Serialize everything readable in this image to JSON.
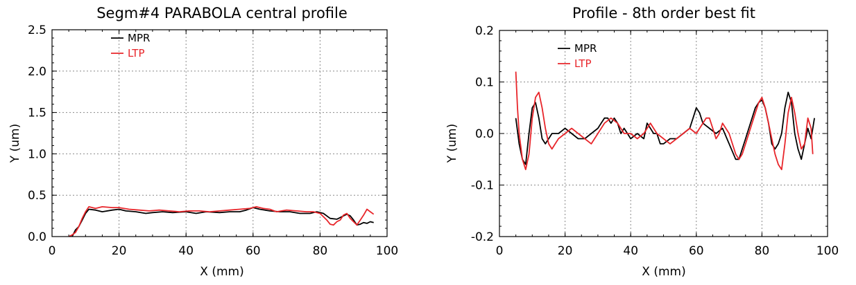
{
  "chart_data": [
    {
      "type": "line",
      "title": "Segm#4 PARABOLA central profile",
      "xlabel": "X (mm)",
      "ylabel": "Y (um)",
      "xlim": [
        0,
        100
      ],
      "ylim": [
        0,
        2.5
      ],
      "xticks": [
        "0",
        "20",
        "40",
        "60",
        "80",
        "100"
      ],
      "yticks": [
        "0.0",
        "0.5",
        "1.0",
        "1.5",
        "2.0",
        "2.5"
      ],
      "grid": true,
      "legend": "top-left",
      "series": [
        {
          "name": "MPR",
          "color": "#000000",
          "points": [
            [
              6,
              0.0
            ],
            [
              7,
              0.08
            ],
            [
              8,
              0.12
            ],
            [
              9,
              0.2
            ],
            [
              10,
              0.28
            ],
            [
              11,
              0.33
            ],
            [
              13,
              0.32
            ],
            [
              15,
              0.3
            ],
            [
              18,
              0.32
            ],
            [
              20,
              0.33
            ],
            [
              22,
              0.31
            ],
            [
              25,
              0.3
            ],
            [
              28,
              0.28
            ],
            [
              30,
              0.29
            ],
            [
              33,
              0.3
            ],
            [
              36,
              0.29
            ],
            [
              40,
              0.3
            ],
            [
              43,
              0.28
            ],
            [
              46,
              0.3
            ],
            [
              50,
              0.29
            ],
            [
              53,
              0.3
            ],
            [
              56,
              0.3
            ],
            [
              58,
              0.32
            ],
            [
              60,
              0.35
            ],
            [
              62,
              0.33
            ],
            [
              65,
              0.31
            ],
            [
              68,
              0.3
            ],
            [
              71,
              0.3
            ],
            [
              74,
              0.28
            ],
            [
              77,
              0.28
            ],
            [
              79,
              0.3
            ],
            [
              81,
              0.28
            ],
            [
              83,
              0.22
            ],
            [
              85,
              0.21
            ],
            [
              87,
              0.25
            ],
            [
              88,
              0.27
            ],
            [
              89,
              0.25
            ],
            [
              90,
              0.2
            ],
            [
              91,
              0.14
            ],
            [
              92,
              0.15
            ],
            [
              93,
              0.17
            ],
            [
              94,
              0.16
            ],
            [
              95,
              0.18
            ],
            [
              96,
              0.17
            ]
          ]
        },
        {
          "name": "LTP",
          "color": "#e8252a",
          "points": [
            [
              5,
              0.0
            ],
            [
              6,
              0.02
            ],
            [
              7,
              0.05
            ],
            [
              8,
              0.12
            ],
            [
              9,
              0.22
            ],
            [
              10,
              0.3
            ],
            [
              11,
              0.36
            ],
            [
              13,
              0.34
            ],
            [
              15,
              0.36
            ],
            [
              18,
              0.35
            ],
            [
              20,
              0.35
            ],
            [
              23,
              0.33
            ],
            [
              26,
              0.32
            ],
            [
              29,
              0.31
            ],
            [
              32,
              0.32
            ],
            [
              35,
              0.31
            ],
            [
              38,
              0.3
            ],
            [
              41,
              0.31
            ],
            [
              44,
              0.31
            ],
            [
              47,
              0.3
            ],
            [
              50,
              0.31
            ],
            [
              53,
              0.32
            ],
            [
              56,
              0.33
            ],
            [
              59,
              0.34
            ],
            [
              61,
              0.36
            ],
            [
              63,
              0.34
            ],
            [
              65,
              0.33
            ],
            [
              67,
              0.3
            ],
            [
              70,
              0.32
            ],
            [
              73,
              0.31
            ],
            [
              76,
              0.3
            ],
            [
              78,
              0.3
            ],
            [
              80,
              0.28
            ],
            [
              82,
              0.2
            ],
            [
              83,
              0.15
            ],
            [
              84,
              0.14
            ],
            [
              85,
              0.18
            ],
            [
              86,
              0.2
            ],
            [
              87,
              0.26
            ],
            [
              88,
              0.28
            ],
            [
              89,
              0.22
            ],
            [
              90,
              0.18
            ],
            [
              91,
              0.14
            ],
            [
              92,
              0.2
            ],
            [
              93,
              0.26
            ],
            [
              94,
              0.33
            ],
            [
              95,
              0.3
            ],
            [
              96,
              0.27
            ]
          ]
        }
      ]
    },
    {
      "type": "line",
      "title": "Profile - 8th order best fit",
      "xlabel": "X (mm)",
      "ylabel": "Y (um)",
      "xlim": [
        0,
        100
      ],
      "ylim": [
        -0.2,
        0.2
      ],
      "xticks": [
        "0",
        "20",
        "40",
        "60",
        "80",
        "100"
      ],
      "yticks": [
        "-0.2",
        "-0.1",
        "0.0",
        "0.1",
        "0.2"
      ],
      "grid": true,
      "legend": "top-left",
      "series": [
        {
          "name": "MPR",
          "color": "#000000",
          "points": [
            [
              5,
              0.03
            ],
            [
              6,
              -0.02
            ],
            [
              7,
              -0.05
            ],
            [
              8,
              -0.06
            ],
            [
              9,
              0.0
            ],
            [
              10,
              0.05
            ],
            [
              11,
              0.06
            ],
            [
              12,
              0.03
            ],
            [
              13,
              -0.01
            ],
            [
              14,
              -0.02
            ],
            [
              15,
              -0.01
            ],
            [
              16,
              0.0
            ],
            [
              18,
              0.0
            ],
            [
              20,
              0.01
            ],
            [
              22,
              0.0
            ],
            [
              24,
              -0.01
            ],
            [
              26,
              -0.01
            ],
            [
              28,
              0.0
            ],
            [
              30,
              0.01
            ],
            [
              31,
              0.02
            ],
            [
              32,
              0.03
            ],
            [
              33,
              0.03
            ],
            [
              34,
              0.02
            ],
            [
              35,
              0.03
            ],
            [
              36,
              0.02
            ],
            [
              37,
              0.0
            ],
            [
              38,
              0.01
            ],
            [
              39,
              0.0
            ],
            [
              40,
              -0.01
            ],
            [
              42,
              0.0
            ],
            [
              44,
              -0.01
            ],
            [
              45,
              0.02
            ],
            [
              46,
              0.01
            ],
            [
              47,
              0.0
            ],
            [
              48,
              0.0
            ],
            [
              49,
              -0.02
            ],
            [
              50,
              -0.02
            ],
            [
              52,
              -0.01
            ],
            [
              54,
              -0.01
            ],
            [
              56,
              0.0
            ],
            [
              58,
              0.01
            ],
            [
              59,
              0.03
            ],
            [
              60,
              0.05
            ],
            [
              61,
              0.04
            ],
            [
              62,
              0.02
            ],
            [
              64,
              0.01
            ],
            [
              66,
              0.0
            ],
            [
              68,
              0.01
            ],
            [
              70,
              -0.02
            ],
            [
              72,
              -0.05
            ],
            [
              73,
              -0.05
            ],
            [
              74,
              -0.03
            ],
            [
              75,
              -0.01
            ],
            [
              76,
              0.01
            ],
            [
              77,
              0.03
            ],
            [
              78,
              0.05
            ],
            [
              79,
              0.06
            ],
            [
              80,
              0.065
            ],
            [
              81,
              0.05
            ],
            [
              82,
              0.02
            ],
            [
              83,
              -0.02
            ],
            [
              84,
              -0.03
            ],
            [
              85,
              -0.02
            ],
            [
              86,
              0.0
            ],
            [
              87,
              0.05
            ],
            [
              88,
              0.08
            ],
            [
              89,
              0.06
            ],
            [
              90,
              0.0
            ],
            [
              91,
              -0.03
            ],
            [
              92,
              -0.05
            ],
            [
              93,
              -0.02
            ],
            [
              94,
              0.01
            ],
            [
              95,
              -0.01
            ],
            [
              96,
              0.03
            ]
          ]
        },
        {
          "name": "LTP",
          "color": "#e8252a",
          "points": [
            [
              5,
              0.12
            ],
            [
              5.5,
              0.05
            ],
            [
              6,
              0.0
            ],
            [
              7,
              -0.05
            ],
            [
              8,
              -0.07
            ],
            [
              9,
              -0.04
            ],
            [
              10,
              0.03
            ],
            [
              11,
              0.07
            ],
            [
              12,
              0.08
            ],
            [
              13,
              0.05
            ],
            [
              14,
              0.01
            ],
            [
              15,
              -0.02
            ],
            [
              16,
              -0.03
            ],
            [
              17,
              -0.02
            ],
            [
              18,
              -0.01
            ],
            [
              20,
              0.0
            ],
            [
              22,
              0.01
            ],
            [
              24,
              0.0
            ],
            [
              26,
              -0.01
            ],
            [
              28,
              -0.02
            ],
            [
              30,
              0.0
            ],
            [
              32,
              0.02
            ],
            [
              34,
              0.03
            ],
            [
              36,
              0.02
            ],
            [
              38,
              0.0
            ],
            [
              40,
              0.0
            ],
            [
              42,
              -0.01
            ],
            [
              44,
              0.0
            ],
            [
              46,
              0.02
            ],
            [
              48,
              0.0
            ],
            [
              50,
              -0.01
            ],
            [
              52,
              -0.02
            ],
            [
              54,
              -0.01
            ],
            [
              56,
              0.0
            ],
            [
              58,
              0.01
            ],
            [
              60,
              0.0
            ],
            [
              62,
              0.02
            ],
            [
              63,
              0.03
            ],
            [
              64,
              0.03
            ],
            [
              65,
              0.01
            ],
            [
              66,
              -0.01
            ],
            [
              67,
              0.0
            ],
            [
              68,
              0.02
            ],
            [
              70,
              0.0
            ],
            [
              72,
              -0.04
            ],
            [
              73,
              -0.05
            ],
            [
              74,
              -0.04
            ],
            [
              75,
              -0.02
            ],
            [
              76,
              0.0
            ],
            [
              77,
              0.02
            ],
            [
              78,
              0.04
            ],
            [
              79,
              0.06
            ],
            [
              80,
              0.07
            ],
            [
              81,
              0.05
            ],
            [
              82,
              0.02
            ],
            [
              83,
              -0.01
            ],
            [
              84,
              -0.04
            ],
            [
              85,
              -0.06
            ],
            [
              86,
              -0.07
            ],
            [
              87,
              -0.02
            ],
            [
              88,
              0.04
            ],
            [
              89,
              0.07
            ],
            [
              90,
              0.04
            ],
            [
              91,
              0.0
            ],
            [
              92,
              -0.03
            ],
            [
              93,
              -0.02
            ],
            [
              94,
              0.03
            ],
            [
              95,
              0.01
            ],
            [
              95.5,
              -0.04
            ]
          ]
        }
      ]
    }
  ]
}
